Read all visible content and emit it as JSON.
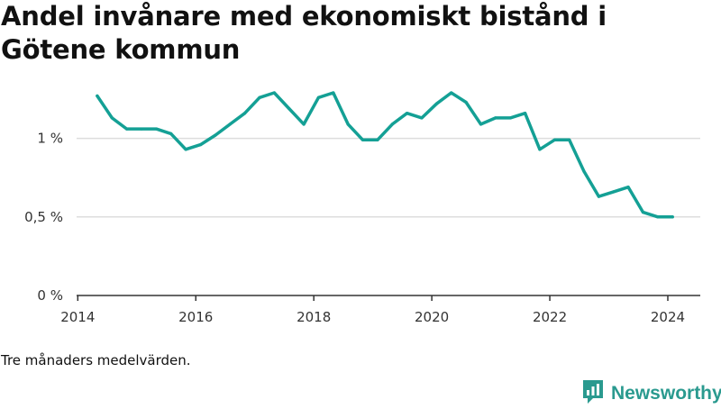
{
  "title": "Andel invånare med ekonomiskt bistånd i Götene kommun",
  "caption": "Tre månaders medelvärden.",
  "brand": {
    "name": "Newsworthy",
    "icon": "newsworthy-logo-icon"
  },
  "colors": {
    "line": "#14a095",
    "grid": "#dddddd",
    "axis": "#333333",
    "text": "#333333",
    "brand": "#2a9a8f"
  },
  "chart_data": {
    "type": "line",
    "title": "Andel invånare med ekonomiskt bistånd i Götene kommun",
    "xlabel": "",
    "ylabel": "",
    "xlim": [
      2013.98,
      2024.55
    ],
    "ylim": [
      0,
      0.0125
    ],
    "x_ticks": [
      2014,
      2016,
      2018,
      2020,
      2022,
      2024
    ],
    "x_tick_labels": [
      "2014",
      "2016",
      "2018",
      "2020",
      "2022",
      "2024"
    ],
    "y_ticks": [
      0,
      0.005,
      0.01
    ],
    "y_tick_labels": [
      "0 %",
      "0,5 %",
      "1 %"
    ],
    "grid": true,
    "series": [
      {
        "x": [
          2014.33,
          2014.58,
          2014.83,
          2015.08,
          2015.33,
          2015.58,
          2015.83,
          2016.08,
          2016.33,
          2016.58,
          2016.83,
          2017.08,
          2017.33,
          2017.58,
          2017.83,
          2018.08,
          2018.33,
          2018.58,
          2018.83,
          2019.08,
          2019.33,
          2019.58,
          2019.83,
          2020.08,
          2020.33,
          2020.58,
          2020.83,
          2021.08,
          2021.33,
          2021.58,
          2021.83,
          2022.08,
          2022.33,
          2022.58,
          2022.83,
          2023.08,
          2023.33,
          2023.58,
          2023.83,
          2024.08
        ],
        "values": [
          0.0127,
          0.0113,
          0.0106,
          0.0106,
          0.0106,
          0.0103,
          0.0093,
          0.0096,
          0.0102,
          0.0109,
          0.0116,
          0.0126,
          0.0129,
          0.0119,
          0.0109,
          0.0126,
          0.0129,
          0.0109,
          0.0099,
          0.0099,
          0.0109,
          0.0116,
          0.0113,
          0.0122,
          0.0129,
          0.0123,
          0.0109,
          0.0113,
          0.0113,
          0.0116,
          0.0093,
          0.0099,
          0.0099,
          0.0079,
          0.0063,
          0.0066,
          0.0069,
          0.0053,
          0.005,
          0.005
        ]
      }
    ]
  }
}
